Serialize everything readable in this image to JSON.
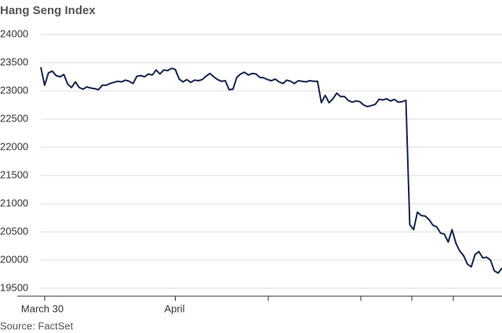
{
  "chart_data": {
    "type": "line",
    "title": "Hang Seng Index",
    "source": "Source: FactSet",
    "color": "#16244a",
    "grid": true,
    "ylim": [
      19360,
      24000
    ],
    "yticks": [
      19500,
      20000,
      20500,
      21000,
      21500,
      22000,
      22500,
      23000,
      23500,
      24000
    ],
    "categories": [
      null,
      "March 30",
      null,
      null,
      null,
      null,
      null,
      null,
      null,
      null,
      null,
      null,
      null,
      null,
      null,
      null,
      null,
      null,
      null,
      null,
      null,
      null,
      null,
      null,
      null,
      null,
      null,
      null,
      null,
      null,
      null,
      null,
      null,
      null,
      null,
      "April",
      null,
      null,
      null,
      null,
      null,
      null,
      null,
      null,
      null,
      null,
      null,
      null,
      null,
      null,
      null,
      null,
      null,
      null,
      null,
      null,
      null,
      null,
      null,
      null,
      null,
      null,
      null,
      null,
      null,
      null,
      null,
      null,
      null,
      null,
      null,
      null,
      null,
      null,
      null,
      null,
      null,
      null,
      null,
      null,
      null,
      null,
      null,
      null,
      null,
      null,
      null,
      null,
      null,
      null,
      null,
      null,
      null,
      null,
      null,
      null,
      null,
      null,
      null,
      null,
      null,
      null,
      null,
      null,
      null,
      null,
      null,
      null,
      null,
      null,
      null,
      null,
      null,
      null,
      null,
      null,
      null,
      null,
      null,
      null,
      null
    ],
    "values": [
      23420,
      23100,
      23320,
      23350,
      23270,
      23250,
      23290,
      23120,
      23060,
      23160,
      23060,
      23030,
      23070,
      23050,
      23040,
      23020,
      23100,
      23100,
      23130,
      23150,
      23170,
      23160,
      23190,
      23170,
      23130,
      23260,
      23270,
      23250,
      23300,
      23280,
      23370,
      23300,
      23370,
      23360,
      23400,
      23380,
      23210,
      23160,
      23200,
      23150,
      23190,
      23180,
      23200,
      23260,
      23310,
      23250,
      23200,
      23170,
      23180,
      23020,
      23030,
      23240,
      23300,
      23330,
      23280,
      23310,
      23300,
      23240,
      23230,
      23200,
      23180,
      23210,
      23160,
      23130,
      23190,
      23170,
      23130,
      23180,
      23170,
      23160,
      23180,
      23170,
      23170,
      22790,
      22920,
      22790,
      22860,
      22960,
      22900,
      22900,
      22830,
      22800,
      22820,
      22810,
      22750,
      22720,
      22740,
      22760,
      22850,
      22840,
      22860,
      22820,
      22850,
      22800,
      22810,
      22830,
      20630,
      20540,
      20850,
      20790,
      20780,
      20720,
      20620,
      20590,
      20480,
      20460,
      20320,
      20540,
      20300,
      20160,
      20080,
      19930,
      19880,
      20100,
      20150,
      20040,
      20050,
      20000,
      19810,
      19770,
      19860
    ]
  }
}
